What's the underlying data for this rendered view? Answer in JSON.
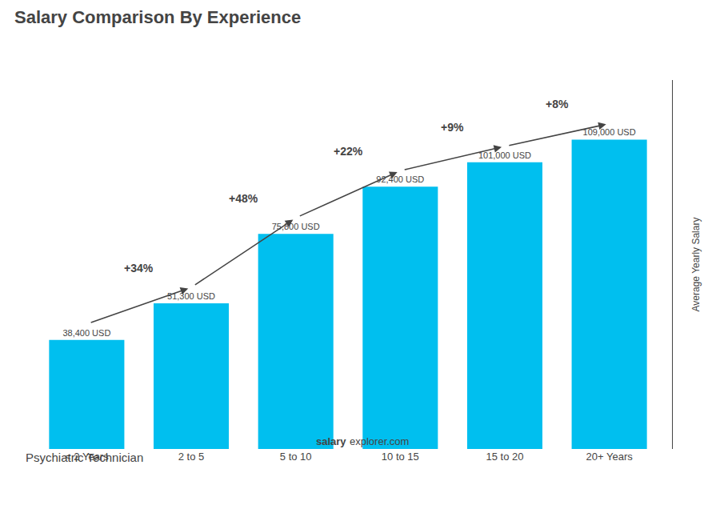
{
  "chart_data": {
    "type": "bar",
    "title": "Salary Comparison By Experience",
    "subtitle": "Psychiatric Technician",
    "categories": [
      "< 2 Years",
      "2 to 5",
      "5 to 10",
      "10 to 15",
      "15 to 20",
      "20+ Years"
    ],
    "values": [
      38400,
      51300,
      75800,
      92400,
      101000,
      109000
    ],
    "value_labels": [
      "38,400 USD",
      "51,300 USD",
      "75,800 USD",
      "92,400 USD",
      "101,000 USD",
      "109,000 USD"
    ],
    "data_labels": true,
    "annotations": [
      "+34%",
      "+48%",
      "+22%",
      "+9%",
      "+8%"
    ],
    "footer": [
      "salary",
      "explorer.com"
    ],
    "ylabel": "Average Yearly Salary",
    "ylim": [
      0,
      130000
    ],
    "tick_labels": "x",
    "grid": false,
    "color": "#00BFEF"
  }
}
